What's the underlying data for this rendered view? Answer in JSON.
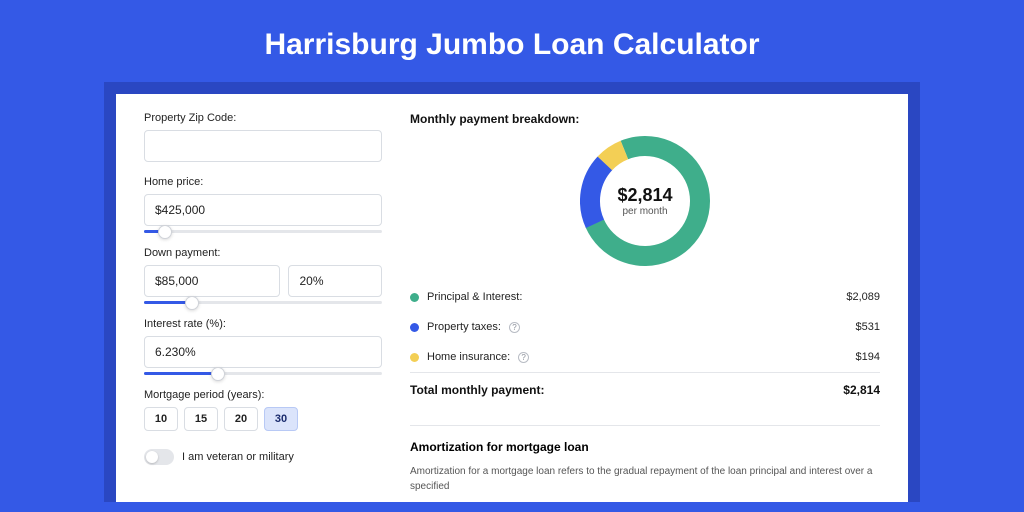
{
  "header": {
    "title": "Harrisburg Jumbo Loan Calculator",
    "background_color": "#3459e6",
    "card_border_color": "#2a47c2"
  },
  "form": {
    "zip": {
      "label": "Property Zip Code:",
      "value": ""
    },
    "home_price": {
      "label": "Home price:",
      "value": "$425,000",
      "slider_fill_pct": 9,
      "thumb_pct": 9
    },
    "down_payment": {
      "label": "Down payment:",
      "amount": "$85,000",
      "pct": "20%",
      "slider_fill_pct": 20,
      "thumb_pct": 20
    },
    "interest_rate": {
      "label": "Interest rate (%):",
      "value": "6.230%",
      "slider_fill_pct": 31,
      "thumb_pct": 31
    },
    "period": {
      "label": "Mortgage period (years):",
      "options": [
        "10",
        "15",
        "20",
        "30"
      ],
      "selected": "30"
    },
    "veteran": {
      "label": "I am veteran or military",
      "checked": false
    }
  },
  "breakdown": {
    "title": "Monthly payment breakdown:",
    "donut": {
      "type": "donut",
      "size": 130,
      "thickness": 20,
      "center_amount": "$2,814",
      "center_sub": "per month",
      "background_color": "#ffffff",
      "slices": [
        {
          "label": "Principal & Interest",
          "value": 2089,
          "pct": 74.3,
          "color": "#3fae8b"
        },
        {
          "label": "Property taxes",
          "value": 531,
          "pct": 18.8,
          "color": "#3459e6"
        },
        {
          "label": "Home insurance",
          "value": 194,
          "pct": 6.9,
          "color": "#f3cf55"
        }
      ]
    },
    "rows": [
      {
        "label": "Principal & Interest:",
        "value": "$2,089",
        "color": "#3fae8b",
        "info": false
      },
      {
        "label": "Property taxes:",
        "value": "$531",
        "color": "#3459e6",
        "info": true
      },
      {
        "label": "Home insurance:",
        "value": "$194",
        "color": "#f3cf55",
        "info": true
      }
    ],
    "total": {
      "label": "Total monthly payment:",
      "value": "$2,814"
    }
  },
  "amortization": {
    "title": "Amortization for mortgage loan",
    "body": "Amortization for a mortgage loan refers to the gradual repayment of the loan principal and interest over a specified"
  }
}
